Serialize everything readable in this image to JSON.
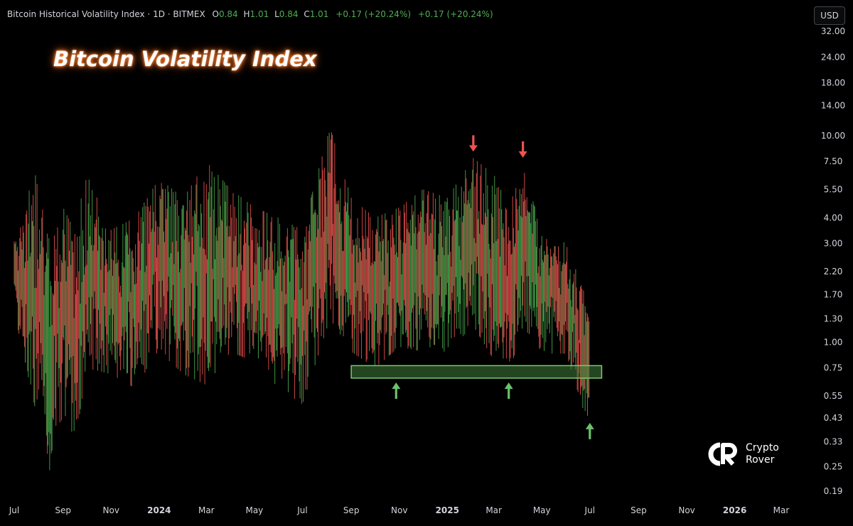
{
  "legend": {
    "symbol": "Bitcoin Historical Volatility Index · 1D · BITMEX",
    "open_label": "O",
    "open_value": "0.84",
    "high_label": "H",
    "high_value": "1.01",
    "low_label": "L",
    "low_value": "0.84",
    "close_label": "C",
    "close_value": "1.01",
    "change_1": "+0.17 (+20.24%)",
    "change_2": "+0.17 (+20.24%)"
  },
  "currency_button": "USD",
  "heading": "Bitcoin Volatility Index",
  "brand": {
    "line1": "Crypto",
    "line2": "Rover"
  },
  "colors": {
    "background": "#000000",
    "candle_up": "#4caf50",
    "candle_down": "#ef5350",
    "support_zone_fill": "#3f7f3a",
    "support_zone_border": "#7ec86f",
    "arrow_up": "#6cc06a",
    "arrow_down": "#ef5350",
    "axis_text": "#d1d4dc"
  },
  "chart_data": {
    "type": "candlestick",
    "y_scale": "log",
    "ylim": [
      0.19,
      32.0
    ],
    "y_ticks": [
      "32.00",
      "24.00",
      "18.00",
      "14.00",
      "10.00",
      "7.50",
      "5.50",
      "4.00",
      "3.00",
      "2.20",
      "1.70",
      "1.30",
      "1.00",
      "0.75",
      "0.55",
      "0.43",
      "0.33",
      "0.25",
      "0.19"
    ],
    "x_ticks": [
      "Jul",
      "Sep",
      "Nov",
      "2024",
      "Mar",
      "May",
      "Jul",
      "Sep",
      "Nov",
      "2025",
      "Mar",
      "May",
      "Jul",
      "Sep",
      "Nov",
      "2026",
      "Mar"
    ],
    "x_tick_dates": [
      "2023-07-01",
      "2023-09-01",
      "2023-11-01",
      "2024-01-01",
      "2024-03-01",
      "2024-05-01",
      "2024-07-01",
      "2024-09-01",
      "2024-11-01",
      "2025-01-01",
      "2025-03-01",
      "2025-05-01",
      "2025-07-01",
      "2025-09-01",
      "2025-11-01",
      "2026-01-01",
      "2026-03-01"
    ],
    "x_range": [
      "2023-07-01",
      "2026-03-25"
    ],
    "data_range": [
      "2023-07-01",
      "2025-06-30"
    ],
    "series": [
      {
        "name": "Bitcoin Historical Volatility Index",
        "samples": [
          {
            "date": "2023-07-01",
            "low": 1.4,
            "high": 3.6
          },
          {
            "date": "2023-08-01",
            "low": 0.4,
            "high": 7.0
          },
          {
            "date": "2023-08-15",
            "low": 0.24,
            "high": 3.0
          },
          {
            "date": "2023-09-01",
            "low": 0.45,
            "high": 4.5
          },
          {
            "date": "2023-09-15",
            "low": 0.3,
            "high": 3.5
          },
          {
            "date": "2023-10-01",
            "low": 0.75,
            "high": 6.5
          },
          {
            "date": "2023-11-01",
            "low": 0.7,
            "high": 3.5
          },
          {
            "date": "2023-12-01",
            "low": 0.6,
            "high": 4.0
          },
          {
            "date": "2024-01-01",
            "low": 0.9,
            "high": 6.2
          },
          {
            "date": "2024-02-01",
            "low": 0.7,
            "high": 5.0
          },
          {
            "date": "2024-03-01",
            "low": 0.62,
            "high": 7.5
          },
          {
            "date": "2024-04-01",
            "low": 0.9,
            "high": 5.5
          },
          {
            "date": "2024-05-01",
            "low": 0.8,
            "high": 4.5
          },
          {
            "date": "2024-06-01",
            "low": 0.6,
            "high": 4.0
          },
          {
            "date": "2024-07-01",
            "low": 0.5,
            "high": 3.5
          },
          {
            "date": "2024-08-05",
            "low": 1.3,
            "high": 11.0
          },
          {
            "date": "2024-09-01",
            "low": 0.9,
            "high": 5.0
          },
          {
            "date": "2024-10-01",
            "low": 0.75,
            "high": 4.0
          },
          {
            "date": "2024-11-01",
            "low": 0.95,
            "high": 4.5
          },
          {
            "date": "2024-12-01",
            "low": 0.9,
            "high": 5.5
          },
          {
            "date": "2025-01-01",
            "low": 0.9,
            "high": 5.0
          },
          {
            "date": "2025-02-03",
            "low": 1.2,
            "high": 7.8
          },
          {
            "date": "2025-03-01",
            "low": 0.82,
            "high": 6.5
          },
          {
            "date": "2025-03-20",
            "low": 0.7,
            "high": 4.5
          },
          {
            "date": "2025-04-07",
            "low": 1.2,
            "high": 7.0
          },
          {
            "date": "2025-05-01",
            "low": 0.88,
            "high": 3.5
          },
          {
            "date": "2025-06-01",
            "low": 0.88,
            "high": 3.0
          },
          {
            "date": "2025-06-25",
            "low": 0.44,
            "high": 1.7
          }
        ]
      }
    ],
    "support_zone": {
      "x_start": "2024-09-01",
      "x_end": "2025-07-16",
      "y_low": 0.67,
      "y_high": 0.77
    },
    "arrows": [
      {
        "direction": "down",
        "x": "2025-02-03",
        "y": 9.2
      },
      {
        "direction": "down",
        "x": "2025-04-07",
        "y": 8.6
      },
      {
        "direction": "up",
        "x": "2024-10-28",
        "y": 0.58
      },
      {
        "direction": "up",
        "x": "2025-03-20",
        "y": 0.58
      },
      {
        "direction": "up",
        "x": "2025-07-01",
        "y": 0.37
      }
    ]
  }
}
